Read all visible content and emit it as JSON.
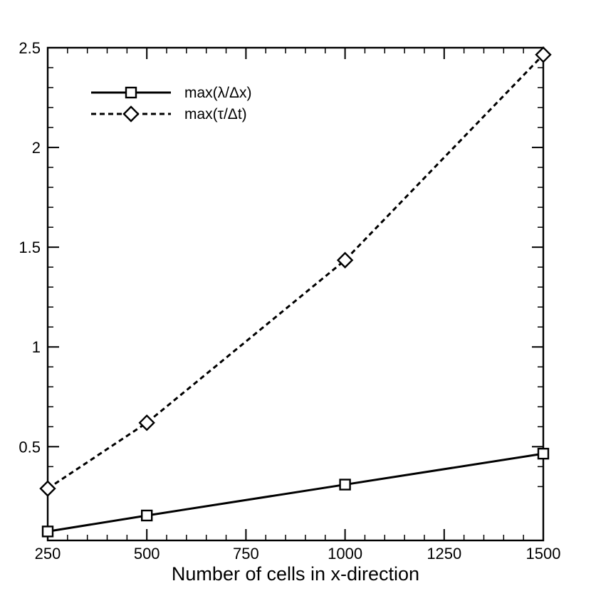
{
  "chart_data": {
    "type": "line",
    "title": "",
    "xlabel": "Number of cells in x-direction",
    "ylabel": "",
    "xlim": [
      250,
      1500
    ],
    "ylim": [
      0.03,
      2.5
    ],
    "x_ticks": [
      250,
      500,
      750,
      1000,
      1250,
      1500
    ],
    "x_tick_labels": [
      "250",
      "500",
      "750",
      "1000",
      "1250",
      "1500"
    ],
    "y_ticks": [
      0.5,
      1,
      1.5,
      2,
      2.5
    ],
    "y_tick_labels": [
      "0.5",
      "1",
      "1.5",
      "2",
      "2.5"
    ],
    "grid": false,
    "legend": "top-left",
    "series": [
      {
        "name": "max(λ/Δx)",
        "x": [
          250,
          500,
          1000,
          1500
        ],
        "values": [
          0.075,
          0.155,
          0.31,
          0.465
        ],
        "line_style": "solid",
        "marker": "square",
        "color": "#000000"
      },
      {
        "name": "max(τ/Δt)",
        "x": [
          250,
          500,
          1000,
          1500
        ],
        "values": [
          0.29,
          0.62,
          1.435,
          2.465
        ],
        "line_style": "dashed",
        "marker": "diamond",
        "color": "#000000"
      }
    ]
  }
}
